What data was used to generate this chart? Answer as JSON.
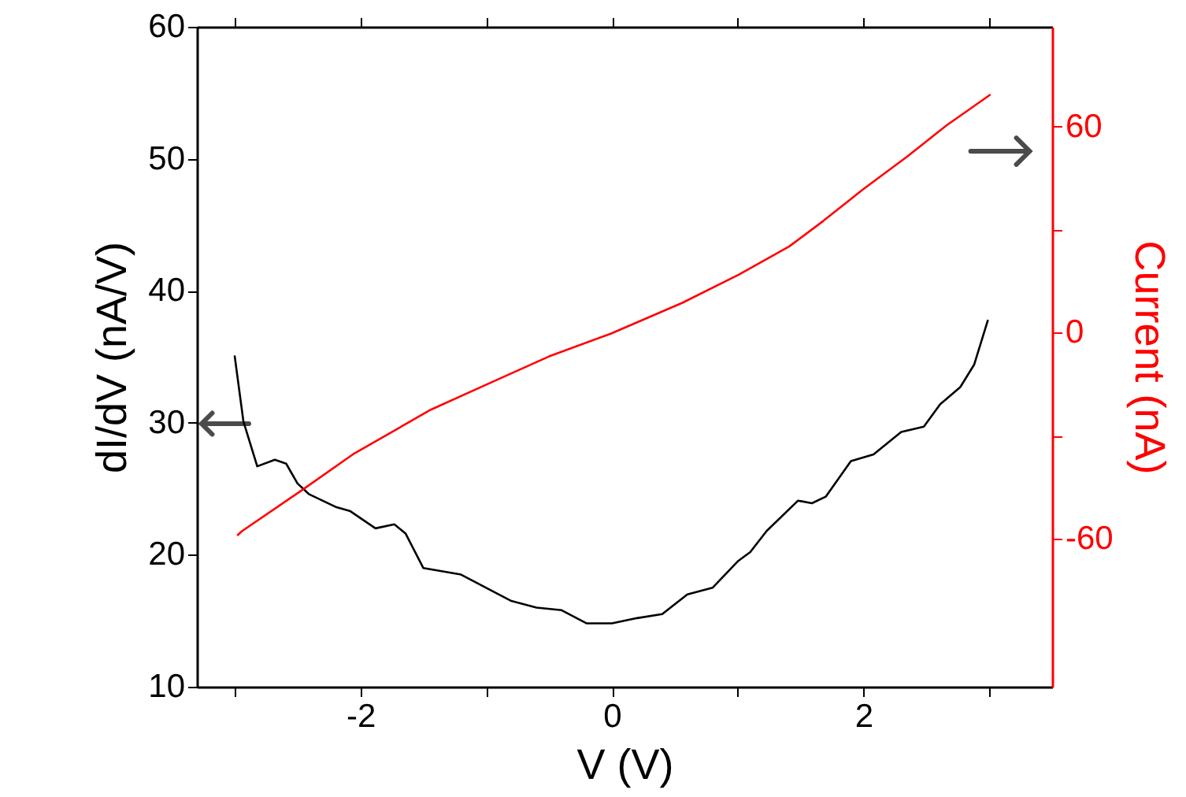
{
  "chart_data": {
    "type": "line",
    "xlabel": "V (V)",
    "ylabel": "dI/dV (nA/V)",
    "y2label": "Current (nA)",
    "xlim": [
      -3.3,
      3.5
    ],
    "xticks": [
      {
        "value": -3,
        "label": null
      },
      -2,
      {
        "value": -1,
        "label": null
      },
      0,
      {
        "value": 1,
        "label": null
      },
      2,
      {
        "value": 3,
        "label": null
      }
    ],
    "ylim": [
      10,
      60
    ],
    "yticks": [
      10,
      20,
      30,
      40,
      50,
      60
    ],
    "y2lim": [
      -103,
      89
    ],
    "y2ticks": [
      -60,
      {
        "value": -30,
        "label": null
      },
      0,
      {
        "value": 30,
        "label": null
      },
      60
    ],
    "grid": false,
    "marker": "none",
    "line_style": "solid",
    "series": [
      {
        "color": "#000000",
        "x": [
          -3.0,
          -2.93,
          -2.82,
          -2.68,
          -2.59,
          -2.5,
          -2.41,
          -2.19,
          -2.08,
          -1.88,
          -1.73,
          -1.64,
          -1.5,
          -1.2,
          -1.0,
          -0.8,
          -0.6,
          -0.4,
          -0.2,
          0.0,
          0.2,
          0.4,
          0.6,
          0.8,
          1.0,
          1.1,
          1.23,
          1.48,
          1.59,
          1.7,
          1.9,
          2.08,
          2.3,
          2.48,
          2.61,
          2.77,
          2.88,
          2.99
        ],
        "values": [
          35.1,
          30.1,
          26.7,
          27.2,
          26.9,
          25.4,
          24.6,
          23.6,
          23.3,
          22.0,
          22.3,
          21.6,
          19.0,
          18.5,
          17.5,
          16.5,
          16.0,
          15.8,
          14.8,
          14.8,
          15.2,
          15.5,
          17.0,
          17.5,
          19.5,
          20.2,
          21.8,
          24.1,
          23.9,
          24.4,
          27.1,
          27.6,
          29.3,
          29.7,
          31.4,
          32.7,
          34.4,
          37.8
        ]
      },
      {
        "color": "#ff0000",
        "axis": "y2",
        "x": [
          -2.98,
          -2.94,
          -2.46,
          -2.06,
          -1.44,
          -0.95,
          -0.5,
          -0.01,
          0.56,
          1.01,
          1.41,
          1.68,
          1.99,
          2.35,
          2.66,
          3.01
        ],
        "values": [
          -59,
          -57.7,
          -45.7,
          -35.4,
          -22.4,
          -14.3,
          -6.9,
          -0.3,
          8.7,
          16.9,
          25.1,
          32.5,
          41.5,
          51.3,
          60.3,
          69.3
        ]
      }
    ]
  }
}
